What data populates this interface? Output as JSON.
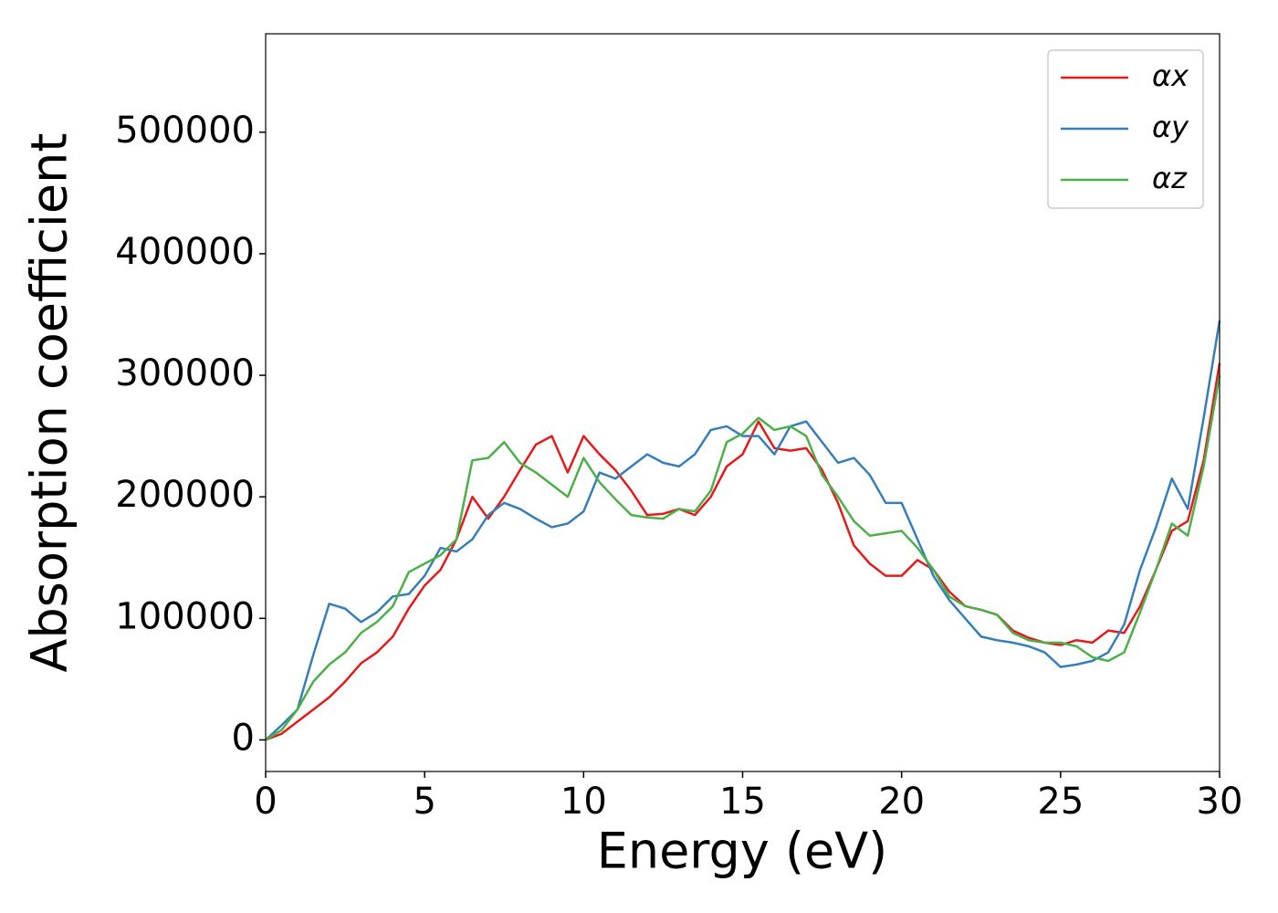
{
  "chart_data": {
    "type": "line",
    "xlabel": "Energy (eV)",
    "ylabel": "Absorption coefficient",
    "x": [
      0,
      0.5,
      1,
      1.5,
      2,
      2.5,
      3,
      3.5,
      4,
      4.5,
      5,
      5.5,
      6,
      6.5,
      7,
      7.5,
      8,
      8.5,
      9,
      9.5,
      10,
      10.5,
      11,
      11.5,
      12,
      12.5,
      13,
      13.5,
      14,
      14.5,
      15,
      15.5,
      16,
      16.5,
      17,
      17.5,
      18,
      18.5,
      19,
      19.5,
      20,
      20.5,
      21,
      21.5,
      22,
      22.5,
      23,
      23.5,
      24,
      24.5,
      25,
      25.5,
      26,
      26.5,
      27,
      27.5,
      28,
      28.5,
      29,
      29.5,
      30
    ],
    "series": [
      {
        "name": "αx",
        "color": "#e41a1c",
        "values": [
          0,
          5000,
          15000,
          25000,
          35000,
          48000,
          63000,
          72000,
          85000,
          108000,
          127000,
          140000,
          165000,
          200000,
          182000,
          200000,
          222000,
          243000,
          250000,
          220000,
          250000,
          235000,
          222000,
          205000,
          185000,
          186000,
          190000,
          185000,
          200000,
          225000,
          235000,
          262000,
          240000,
          238000,
          240000,
          222000,
          195000,
          160000,
          145000,
          135000,
          135000,
          148000,
          140000,
          122000,
          110000,
          107000,
          103000,
          90000,
          84000,
          80000,
          78000,
          82000,
          80000,
          90000,
          88000,
          110000,
          140000,
          172000,
          180000,
          230000,
          310000
        ]
      },
      {
        "name": "αy",
        "color": "#377eb8",
        "values": [
          0,
          12000,
          25000,
          70000,
          112000,
          108000,
          97000,
          105000,
          118000,
          120000,
          135000,
          158000,
          155000,
          165000,
          185000,
          195000,
          190000,
          182000,
          175000,
          178000,
          188000,
          220000,
          215000,
          225000,
          235000,
          228000,
          225000,
          235000,
          255000,
          258000,
          250000,
          250000,
          235000,
          258000,
          262000,
          245000,
          228000,
          232000,
          218000,
          195000,
          195000,
          165000,
          135000,
          115000,
          100000,
          85000,
          82000,
          80000,
          77000,
          72000,
          60000,
          62000,
          65000,
          72000,
          95000,
          140000,
          175000,
          215000,
          190000,
          265000,
          345000
        ]
      },
      {
        "name": "αz",
        "color": "#4daf4a",
        "values": [
          0,
          8000,
          25000,
          48000,
          62000,
          72000,
          88000,
          97000,
          110000,
          138000,
          145000,
          152000,
          165000,
          230000,
          232000,
          245000,
          228000,
          220000,
          210000,
          200000,
          232000,
          212000,
          198000,
          185000,
          183000,
          182000,
          190000,
          188000,
          205000,
          245000,
          252000,
          265000,
          255000,
          258000,
          250000,
          218000,
          200000,
          180000,
          168000,
          170000,
          172000,
          158000,
          140000,
          118000,
          110000,
          107000,
          103000,
          88000,
          82000,
          80000,
          80000,
          77000,
          68000,
          65000,
          72000,
          105000,
          140000,
          178000,
          168000,
          225000,
          300000
        ]
      }
    ],
    "xlim": [
      0,
      30
    ],
    "xticks": [
      0,
      5,
      10,
      15,
      20,
      25,
      30
    ],
    "ylim": [
      -26000,
      581000
    ],
    "yticks": [
      0,
      100000,
      200000,
      300000,
      400000,
      500000
    ],
    "grid": false,
    "legend": "upper right"
  }
}
